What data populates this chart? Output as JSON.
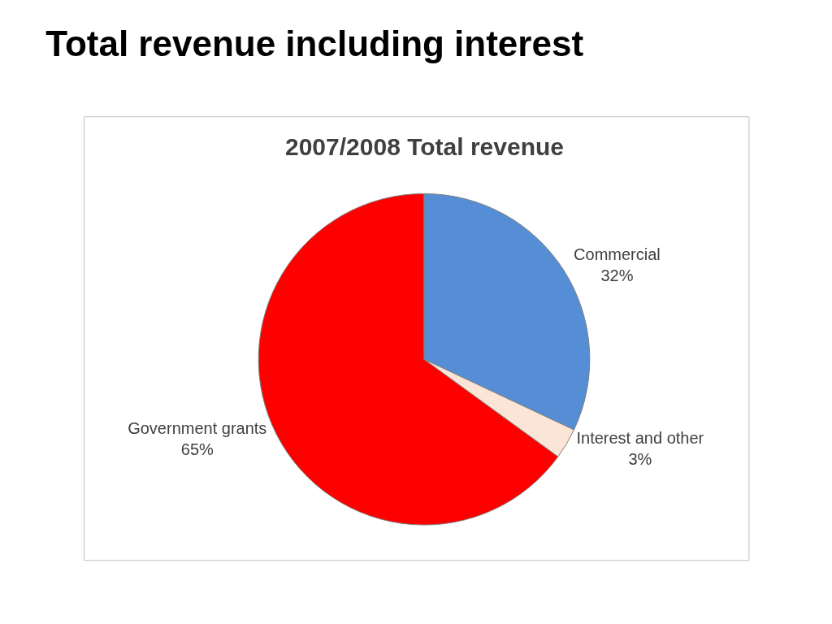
{
  "chart_data": {
    "type": "pie",
    "title": "Total revenue including interest",
    "subtitle": "2007/2008 Total revenue",
    "categories": [
      "Government grants",
      "Commercial",
      "Interest and other"
    ],
    "values": [
      65,
      32,
      3
    ],
    "value_labels": [
      "65%",
      "32%",
      "3%"
    ],
    "colors": [
      "#ff0000",
      "#558ed5",
      "#fbe5d6"
    ],
    "legend": false
  }
}
